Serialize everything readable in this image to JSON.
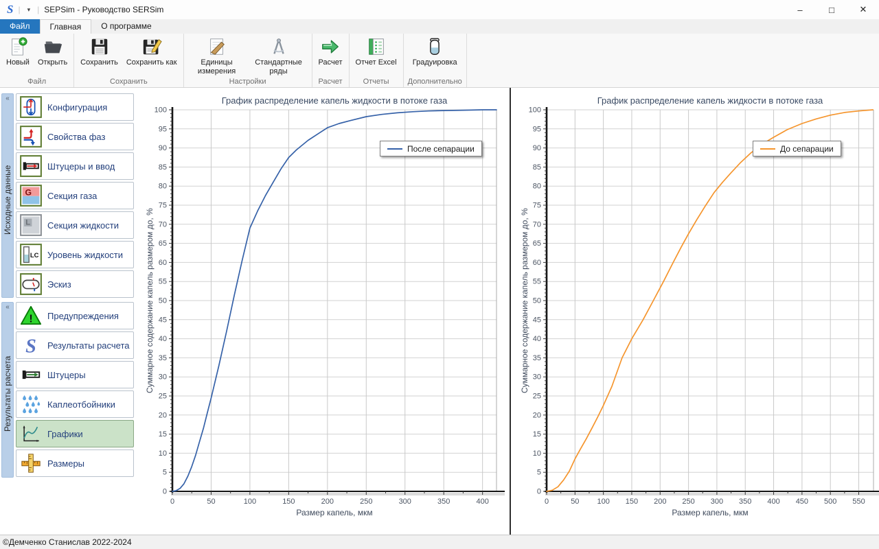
{
  "window": {
    "title": "SEPSim - Руководство SERSim",
    "logo": "S",
    "qat_caret": "▾",
    "separator": "|",
    "minimize_glyph": "–",
    "maximize_glyph": "□",
    "close_glyph": "✕"
  },
  "tabs": [
    {
      "name": "file",
      "label": "Файл"
    },
    {
      "name": "home",
      "label": "Главная"
    },
    {
      "name": "about",
      "label": "О программе"
    }
  ],
  "ribbon": {
    "groups": [
      {
        "name": "file",
        "label": "Файл",
        "buttons": [
          {
            "name": "new",
            "label": "Новый",
            "icon": "new-document-icon"
          },
          {
            "name": "open",
            "label": "Открыть",
            "icon": "open-folder-icon"
          }
        ]
      },
      {
        "name": "save",
        "label": "Сохранить",
        "buttons": [
          {
            "name": "save",
            "label": "Сохранить",
            "icon": "save-floppy-icon"
          },
          {
            "name": "save-as",
            "label": "Сохранить как",
            "icon": "save-as-floppy-icon"
          }
        ]
      },
      {
        "name": "settings",
        "label": "Настройки",
        "buttons": [
          {
            "name": "units",
            "label": "Единицы измерения",
            "icon": "units-icon"
          },
          {
            "name": "standard-series",
            "label": "Стандартные ряды",
            "icon": "standard-series-icon"
          }
        ]
      },
      {
        "name": "calc",
        "label": "Расчет",
        "buttons": [
          {
            "name": "calculate",
            "label": "Расчет",
            "icon": "calculate-arrow-icon"
          }
        ]
      },
      {
        "name": "reports",
        "label": "Отчеты",
        "buttons": [
          {
            "name": "excel-report",
            "label": "Отчет Excel",
            "icon": "excel-report-icon"
          }
        ]
      },
      {
        "name": "extra",
        "label": "Дополнительно",
        "buttons": [
          {
            "name": "calibration",
            "label": "Градуировка",
            "icon": "calibration-icon"
          }
        ]
      }
    ]
  },
  "sidebar": {
    "collapse_glyph": "«",
    "groups": [
      {
        "name": "input-data",
        "title": "Исходные данные",
        "items": [
          {
            "name": "configuration",
            "label": "Конфигурация",
            "icon": "configuration-icon"
          },
          {
            "name": "phase-properties",
            "label": "Свойства фаз",
            "icon": "phase-properties-icon"
          },
          {
            "name": "nozzles-input",
            "label": "Штуцеры и ввод",
            "icon": "nozzles-input-icon"
          },
          {
            "name": "gas-section",
            "label": "Секция газа",
            "icon": "gas-section-icon"
          },
          {
            "name": "liquid-section",
            "label": "Секция жидкости",
            "icon": "liquid-section-icon"
          },
          {
            "name": "liquid-level",
            "label": "Уровень жидкости",
            "icon": "liquid-level-icon"
          },
          {
            "name": "sketch",
            "label": "Эскиз",
            "icon": "sketch-icon"
          }
        ]
      },
      {
        "name": "calc-results",
        "title": "Результаты расчета",
        "items": [
          {
            "name": "warnings",
            "label": "Предупреждения",
            "icon": "warnings-icon"
          },
          {
            "name": "calc-results",
            "label": "Результаты расчета",
            "icon": "results-icon"
          },
          {
            "name": "nozzles",
            "label": "Штуцеры",
            "icon": "nozzles-icon"
          },
          {
            "name": "demisters",
            "label": "Каплеотбойники",
            "icon": "demisters-icon"
          },
          {
            "name": "charts",
            "label": "Графики",
            "icon": "charts-icon",
            "selected": true
          },
          {
            "name": "dimensions",
            "label": "Размеры",
            "icon": "dimensions-icon"
          }
        ]
      }
    ]
  },
  "icon_glyphs": {
    "gas": "G",
    "liquid": "L",
    "level": "LC",
    "results": "S",
    "warning": "!"
  },
  "statusbar": {
    "text": "©Демченко Станислав 2022-2024"
  },
  "chart_data": [
    {
      "type": "line",
      "title": "График распределение капель жидкости в потоке газа",
      "xlabel": "Размер капель, мкм",
      "ylabel": "Суммарное содержание капель размером до, %",
      "legend": "После сепарации",
      "legend_position": "top-right-inside",
      "color": "#3561a8",
      "grid": true,
      "xlim": [
        0,
        418
      ],
      "ylim": [
        0,
        100
      ],
      "x_tick_step": 50,
      "x_tick_max": 400,
      "y_tick_step": 5,
      "series": [
        {
          "name": "После сепарации",
          "x": [
            0,
            5,
            10,
            15,
            20,
            25,
            30,
            35,
            40,
            45,
            50,
            60,
            70,
            80,
            90,
            100,
            110,
            120,
            130,
            140,
            150,
            160,
            175,
            190,
            200,
            215,
            230,
            250,
            270,
            290,
            310,
            330,
            350,
            375,
            400,
            418
          ],
          "y": [
            0,
            0.2,
            0.8,
            2,
            4,
            6.5,
            9.5,
            13,
            16.5,
            20.5,
            24.5,
            33,
            42,
            51.5,
            60.5,
            69,
            73.5,
            77.5,
            81,
            84.5,
            87.5,
            89.5,
            92,
            94,
            95.3,
            96.4,
            97.2,
            98.2,
            98.8,
            99.2,
            99.5,
            99.7,
            99.8,
            99.9,
            100,
            100
          ]
        }
      ]
    },
    {
      "type": "line",
      "title": "График распределение капель жидкости в потоке газа",
      "xlabel": "Размер капель, мкм",
      "ylabel": "Суммарное содержание капель размером до, %",
      "legend": "До сепарации",
      "legend_position": "top-right-inside",
      "color": "#f5952d",
      "grid": true,
      "xlim": [
        0,
        576
      ],
      "ylim": [
        0,
        100
      ],
      "x_tick_step": 50,
      "x_tick_max": 550,
      "y_tick_step": 5,
      "series": [
        {
          "name": "До сепарации",
          "x": [
            0,
            10,
            20,
            30,
            40,
            50,
            60,
            70,
            80,
            90,
            100,
            115,
            133,
            150,
            170,
            188,
            206,
            223,
            237,
            250,
            265,
            280,
            295,
            310,
            325,
            342,
            360,
            380,
            400,
            424,
            450,
            475,
            500,
            525,
            550,
            575
          ],
          "y": [
            0,
            0.3,
            1.2,
            3,
            5.3,
            8.5,
            11.2,
            13.8,
            16.6,
            19.5,
            22.5,
            27.5,
            35,
            40,
            45,
            50,
            55,
            60,
            64,
            67.5,
            71.3,
            74.9,
            78.3,
            81,
            83.5,
            86.2,
            88.7,
            91,
            92.8,
            94.8,
            96.4,
            97.6,
            98.6,
            99.3,
            99.7,
            100
          ]
        }
      ]
    }
  ]
}
